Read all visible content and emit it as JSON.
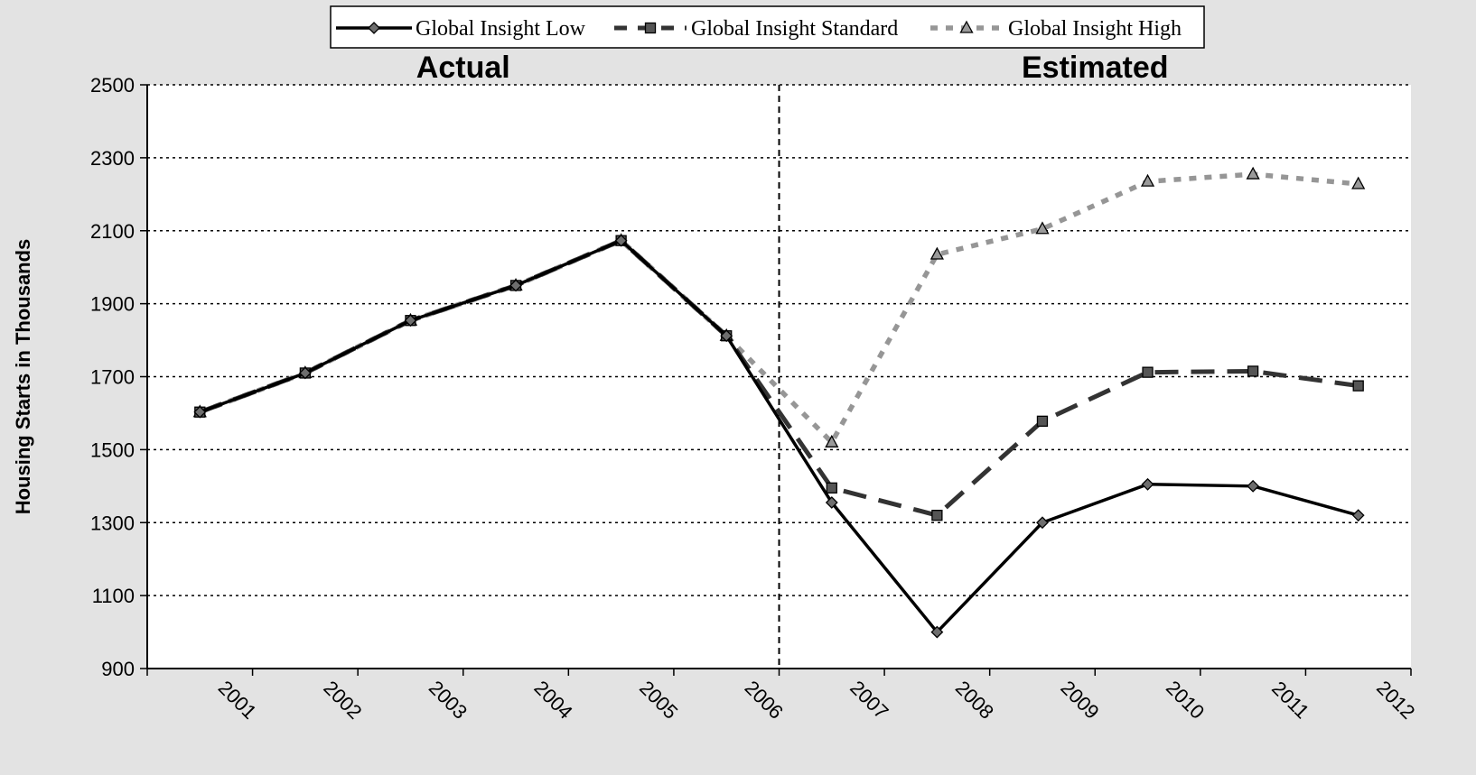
{
  "chart_data": {
    "type": "line",
    "xlabel": "",
    "ylabel": "Housing Starts in Thousands",
    "ylim": [
      900,
      2500
    ],
    "yticks": [
      900,
      1100,
      1300,
      1500,
      1700,
      1900,
      2100,
      2300,
      2500
    ],
    "categories": [
      "2001",
      "2002",
      "2003",
      "2004",
      "2005",
      "2006",
      "2007",
      "2008",
      "2009",
      "2010",
      "2011",
      "2012"
    ],
    "grid": "horizontal dotted",
    "legend_position": "top",
    "region_labels": [
      {
        "text": "Actual",
        "range": [
          "2001",
          "2006"
        ]
      },
      {
        "text": "Estimated",
        "range": [
          "2007",
          "2012"
        ]
      }
    ],
    "divider_between": [
      "2006",
      "2007"
    ],
    "series": [
      {
        "name": "Global Insight Low",
        "color": "#000000",
        "line_style": "solid",
        "marker": "diamond",
        "values": [
          1603,
          1710,
          1854,
          1950,
          2073,
          1812,
          1355,
          1000,
          1300,
          1405,
          1400,
          1320
        ]
      },
      {
        "name": "Global Insight Standard",
        "color": "#333333",
        "line_style": "dashed",
        "marker": "square",
        "values": [
          1603,
          1710,
          1854,
          1950,
          2073,
          1812,
          1395,
          1320,
          1578,
          1712,
          1715,
          1675
        ]
      },
      {
        "name": "Global Insight High",
        "color": "#969696",
        "line_style": "dotted",
        "marker": "triangle",
        "values": [
          1603,
          1710,
          1854,
          1950,
          2073,
          1812,
          1520,
          2035,
          2105,
          2235,
          2255,
          2228
        ]
      }
    ]
  }
}
